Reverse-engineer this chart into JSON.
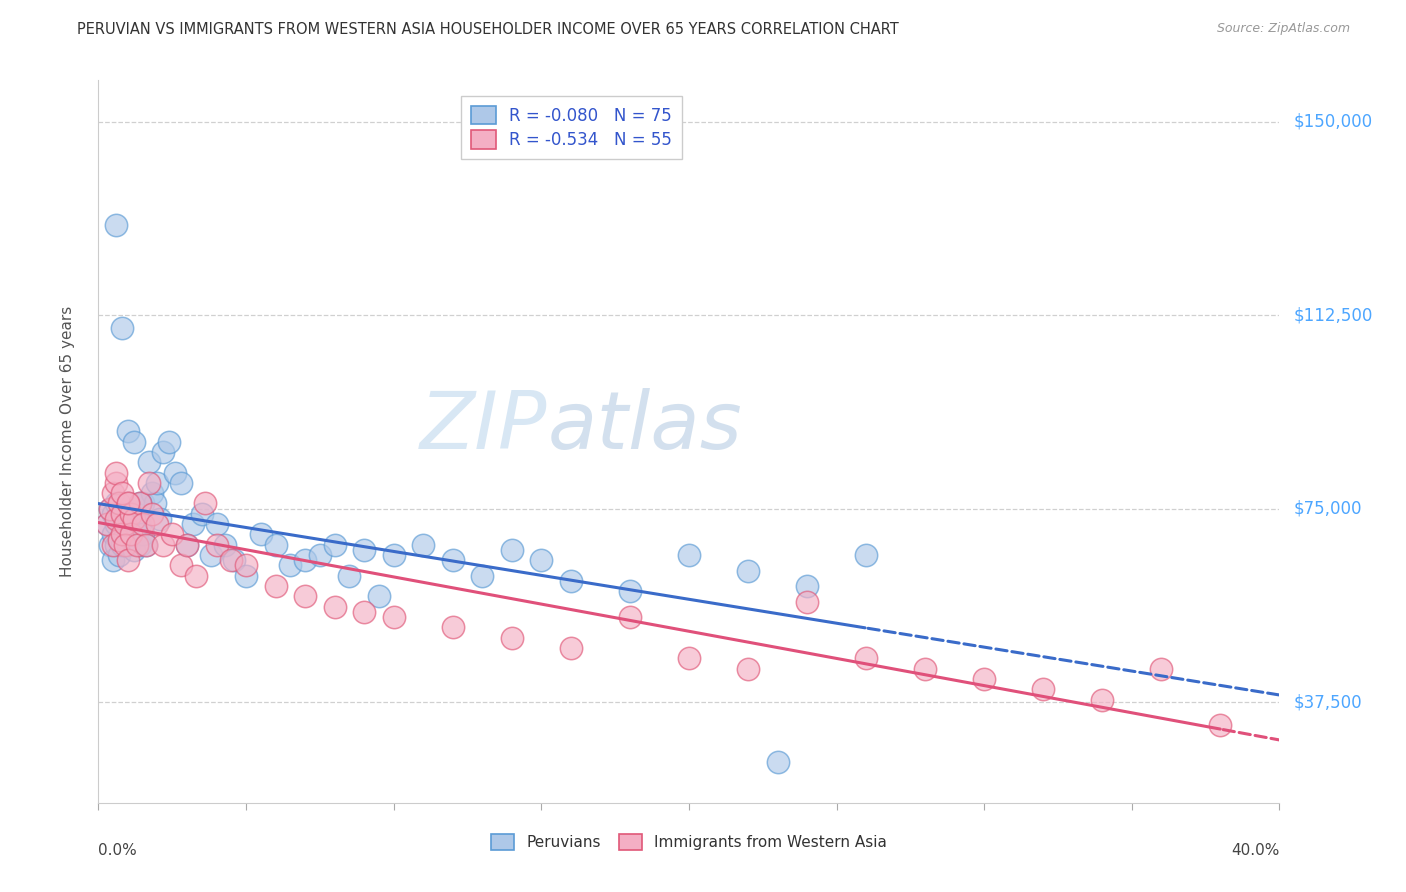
{
  "title": "PERUVIAN VS IMMIGRANTS FROM WESTERN ASIA HOUSEHOLDER INCOME OVER 65 YEARS CORRELATION CHART",
  "source": "Source: ZipAtlas.com",
  "ylabel": "Householder Income Over 65 years",
  "ytick_labels": [
    "$37,500",
    "$75,000",
    "$112,500",
    "$150,000"
  ],
  "ytick_values": [
    37500,
    75000,
    112500,
    150000
  ],
  "ymin": 18000,
  "ymax": 158000,
  "xmin": 0.0,
  "xmax": 0.4,
  "R_peruvian": -0.08,
  "N_peruvian": 75,
  "R_western_asia": -0.534,
  "N_western_asia": 55,
  "blue_fill": "#aec8e8",
  "blue_edge": "#5b9bd5",
  "pink_fill": "#f4afc4",
  "pink_edge": "#e05878",
  "blue_line": "#3a6bc9",
  "pink_line": "#e0507a",
  "legend_label_blue": "Peruvians",
  "legend_label_pink": "Immigrants from Western Asia",
  "bg_color": "#ffffff",
  "grid_color": "#d0d0d0",
  "title_color": "#333333",
  "source_color": "#999999",
  "right_tick_color": "#4da6ff",
  "legend_text_color": "#3355cc",
  "peruvian_x": [
    0.003,
    0.004,
    0.004,
    0.005,
    0.005,
    0.005,
    0.006,
    0.006,
    0.006,
    0.007,
    0.007,
    0.007,
    0.008,
    0.008,
    0.008,
    0.009,
    0.009,
    0.01,
    0.01,
    0.01,
    0.011,
    0.011,
    0.012,
    0.012,
    0.013,
    0.013,
    0.014,
    0.014,
    0.015,
    0.015,
    0.016,
    0.017,
    0.018,
    0.019,
    0.02,
    0.021,
    0.022,
    0.024,
    0.026,
    0.028,
    0.03,
    0.032,
    0.035,
    0.038,
    0.04,
    0.043,
    0.046,
    0.05,
    0.055,
    0.06,
    0.065,
    0.07,
    0.075,
    0.08,
    0.085,
    0.09,
    0.095,
    0.1,
    0.11,
    0.12,
    0.13,
    0.14,
    0.15,
    0.16,
    0.18,
    0.2,
    0.22,
    0.24,
    0.26,
    0.006,
    0.008,
    0.01,
    0.012,
    0.014,
    0.23
  ],
  "peruvian_y": [
    72000,
    68000,
    75000,
    70000,
    74000,
    65000,
    68000,
    72000,
    76000,
    69000,
    73000,
    66000,
    71000,
    75000,
    68000,
    74000,
    70000,
    72000,
    68000,
    76000,
    73000,
    69000,
    71000,
    67000,
    74000,
    70000,
    72000,
    68000,
    76000,
    70000,
    68000,
    84000,
    78000,
    76000,
    80000,
    73000,
    86000,
    88000,
    82000,
    80000,
    68000,
    72000,
    74000,
    66000,
    72000,
    68000,
    65000,
    62000,
    70000,
    68000,
    64000,
    65000,
    66000,
    68000,
    62000,
    67000,
    58000,
    66000,
    68000,
    65000,
    62000,
    67000,
    65000,
    61000,
    59000,
    66000,
    63000,
    60000,
    66000,
    130000,
    110000,
    90000,
    88000,
    76000,
    26000
  ],
  "western_asia_x": [
    0.003,
    0.004,
    0.005,
    0.005,
    0.006,
    0.006,
    0.007,
    0.007,
    0.008,
    0.008,
    0.009,
    0.009,
    0.01,
    0.01,
    0.011,
    0.011,
    0.012,
    0.013,
    0.014,
    0.015,
    0.016,
    0.017,
    0.018,
    0.02,
    0.022,
    0.025,
    0.028,
    0.03,
    0.033,
    0.036,
    0.04,
    0.045,
    0.05,
    0.06,
    0.07,
    0.08,
    0.09,
    0.1,
    0.12,
    0.14,
    0.16,
    0.18,
    0.2,
    0.22,
    0.24,
    0.26,
    0.28,
    0.3,
    0.32,
    0.34,
    0.36,
    0.38,
    0.006,
    0.008,
    0.01
  ],
  "western_asia_y": [
    72000,
    75000,
    68000,
    78000,
    73000,
    80000,
    69000,
    76000,
    74000,
    70000,
    72000,
    68000,
    76000,
    65000,
    74000,
    70000,
    73000,
    68000,
    76000,
    72000,
    68000,
    80000,
    74000,
    72000,
    68000,
    70000,
    64000,
    68000,
    62000,
    76000,
    68000,
    65000,
    64000,
    60000,
    58000,
    56000,
    55000,
    54000,
    52000,
    50000,
    48000,
    54000,
    46000,
    44000,
    57000,
    46000,
    44000,
    42000,
    40000,
    38000,
    44000,
    33000,
    82000,
    78000,
    76000
  ]
}
